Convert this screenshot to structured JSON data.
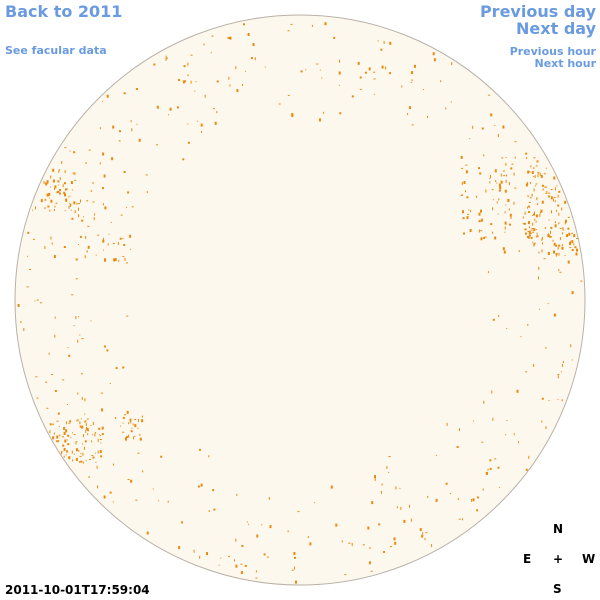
{
  "nav": {
    "back": "Back to 2011",
    "facular": "See facular data",
    "previous_day": "Previous day",
    "next_day": "Next day",
    "previous_hour": "Previous hour",
    "next_hour": "Next hour"
  },
  "compass": {
    "north": "N",
    "east": "E",
    "center": "+",
    "west": "W",
    "south": "S"
  },
  "timestamp": "2011-10-01T17:59:04",
  "colors": {
    "disk_fill": "#fdf8ee",
    "disk_edge": "#b9b1a8",
    "facula": "#e88a10",
    "link": "#6a9be0"
  }
}
